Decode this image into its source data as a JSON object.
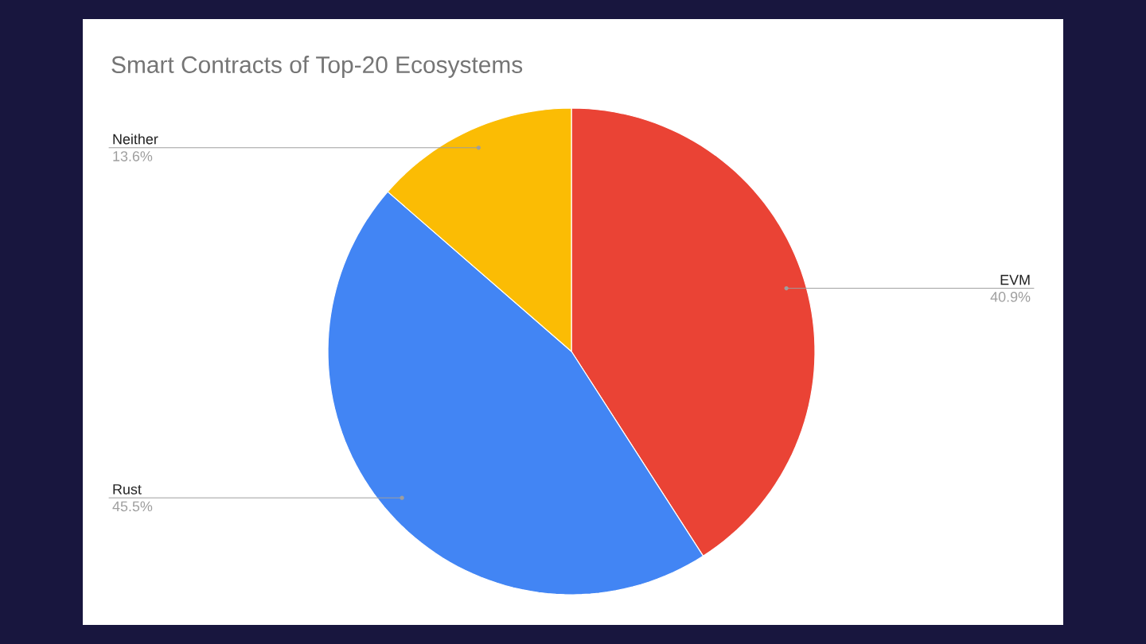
{
  "chart_data": {
    "type": "pie",
    "title": "Smart Contracts of Top-20 Ecosystems",
    "categories": [
      "EVM",
      "Rust",
      "Neither"
    ],
    "values": [
      40.9,
      45.5,
      13.6
    ],
    "colors": [
      "#ea4335",
      "#4285f4",
      "#fbbc04"
    ],
    "value_labels": [
      "40.9%",
      "45.5%",
      "13.6%"
    ]
  }
}
